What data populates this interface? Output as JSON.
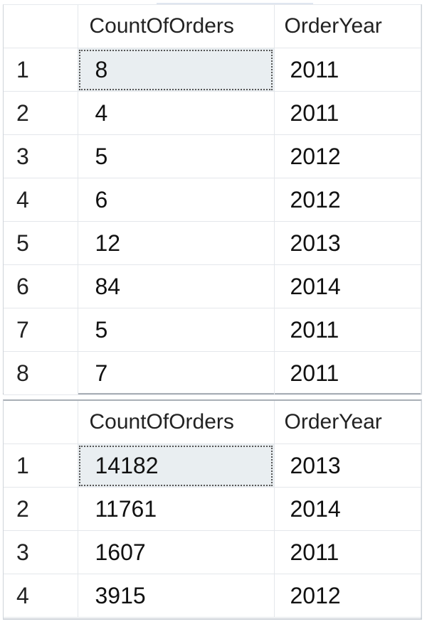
{
  "results": [
    {
      "columns": [
        "",
        "CountOfOrders",
        "OrderYear"
      ],
      "rows": [
        {
          "row": "1",
          "count": "8",
          "year": "2011"
        },
        {
          "row": "2",
          "count": "4",
          "year": "2011"
        },
        {
          "row": "3",
          "count": "5",
          "year": "2012"
        },
        {
          "row": "4",
          "count": "6",
          "year": "2012"
        },
        {
          "row": "5",
          "count": "12",
          "year": "2013"
        },
        {
          "row": "6",
          "count": "84",
          "year": "2014"
        },
        {
          "row": "7",
          "count": "5",
          "year": "2011"
        },
        {
          "row": "8",
          "count": "7",
          "year": "2011"
        }
      ],
      "selected_row": 0,
      "selected_column": "CountOfOrders"
    },
    {
      "columns": [
        "",
        "CountOfOrders",
        "OrderYear"
      ],
      "rows": [
        {
          "row": "1",
          "count": "14182",
          "year": "2013"
        },
        {
          "row": "2",
          "count": "11761",
          "year": "2014"
        },
        {
          "row": "3",
          "count": "1607",
          "year": "2011"
        },
        {
          "row": "4",
          "count": "3915",
          "year": "2012"
        }
      ],
      "selected_row": 0,
      "selected_column": "CountOfOrders"
    }
  ],
  "colors": {
    "selected_cell_bg": "#e9eef1",
    "grid_line": "#e4e7eb",
    "panel_border": "#a9afb6"
  }
}
